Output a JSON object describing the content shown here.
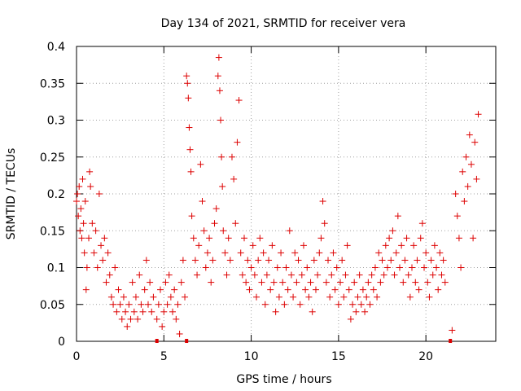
{
  "chart_data": {
    "type": "scatter",
    "title": "Day 134 of 2021, SRMTID for receiver vera",
    "xlabel": "GPS time / hours",
    "ylabel": "SRMTID / TECUs",
    "xlim": [
      0,
      24
    ],
    "ylim": [
      0,
      0.4
    ],
    "xticks": [
      0,
      5,
      10,
      15,
      20
    ],
    "xtick_labels": [
      "0",
      "5",
      "10",
      "15",
      "20"
    ],
    "yticks": [
      0,
      0.05,
      0.1,
      0.15,
      0.2,
      0.25,
      0.3,
      0.35,
      0.4
    ],
    "ytick_labels": [
      "0",
      "0.05",
      "0.1",
      "0.15",
      "0.2",
      "0.25",
      "0.3",
      "0.35",
      "0.4"
    ],
    "grid": true,
    "marker": "+",
    "color": "#dd0000",
    "series": [
      {
        "name": "SRMTID",
        "points": [
          [
            0.0,
            0.19
          ],
          [
            0.05,
            0.2
          ],
          [
            0.1,
            0.17
          ],
          [
            0.15,
            0.21
          ],
          [
            0.2,
            0.15
          ],
          [
            0.25,
            0.18
          ],
          [
            0.3,
            0.14
          ],
          [
            0.35,
            0.22
          ],
          [
            0.4,
            0.16
          ],
          [
            0.45,
            0.12
          ],
          [
            0.5,
            0.19
          ],
          [
            0.55,
            0.07
          ],
          [
            0.6,
            0.1
          ],
          [
            0.7,
            0.14
          ],
          [
            0.75,
            0.23
          ],
          [
            0.8,
            0.21
          ],
          [
            0.9,
            0.16
          ],
          [
            1.0,
            0.12
          ],
          [
            1.1,
            0.15
          ],
          [
            1.2,
            0.1
          ],
          [
            1.3,
            0.2
          ],
          [
            1.4,
            0.13
          ],
          [
            1.5,
            0.11
          ],
          [
            1.6,
            0.14
          ],
          [
            1.7,
            0.08
          ],
          [
            1.8,
            0.12
          ],
          [
            1.9,
            0.09
          ],
          [
            2.0,
            0.06
          ],
          [
            2.1,
            0.05
          ],
          [
            2.2,
            0.1
          ],
          [
            2.3,
            0.04
          ],
          [
            2.4,
            0.07
          ],
          [
            2.5,
            0.05
          ],
          [
            2.6,
            0.03
          ],
          [
            2.7,
            0.06
          ],
          [
            2.8,
            0.04
          ],
          [
            2.9,
            0.02
          ],
          [
            3.0,
            0.05
          ],
          [
            3.1,
            0.03
          ],
          [
            3.2,
            0.08
          ],
          [
            3.3,
            0.04
          ],
          [
            3.4,
            0.06
          ],
          [
            3.5,
            0.03
          ],
          [
            3.6,
            0.09
          ],
          [
            3.7,
            0.05
          ],
          [
            3.8,
            0.04
          ],
          [
            3.9,
            0.07
          ],
          [
            4.0,
            0.11
          ],
          [
            4.1,
            0.05
          ],
          [
            4.2,
            0.08
          ],
          [
            4.3,
            0.04
          ],
          [
            4.4,
            0.06
          ],
          [
            4.6,
            0.03
          ],
          [
            4.7,
            0.05
          ],
          [
            4.8,
            0.07
          ],
          [
            4.9,
            0.02
          ],
          [
            5.0,
            0.04
          ],
          [
            5.1,
            0.08
          ],
          [
            5.2,
            0.05
          ],
          [
            5.3,
            0.09
          ],
          [
            5.4,
            0.06
          ],
          [
            5.5,
            0.04
          ],
          [
            5.6,
            0.07
          ],
          [
            5.7,
            0.03
          ],
          [
            5.8,
            0.05
          ],
          [
            5.9,
            0.01
          ],
          [
            6.0,
            0.08
          ],
          [
            6.1,
            0.11
          ],
          [
            6.2,
            0.06
          ],
          [
            6.3,
            0.36
          ],
          [
            6.35,
            0.35
          ],
          [
            6.4,
            0.33
          ],
          [
            6.45,
            0.29
          ],
          [
            6.5,
            0.26
          ],
          [
            6.55,
            0.23
          ],
          [
            6.6,
            0.17
          ],
          [
            6.7,
            0.14
          ],
          [
            6.8,
            0.11
          ],
          [
            6.9,
            0.09
          ],
          [
            7.0,
            0.13
          ],
          [
            7.1,
            0.24
          ],
          [
            7.2,
            0.19
          ],
          [
            7.3,
            0.15
          ],
          [
            7.4,
            0.1
          ],
          [
            7.5,
            0.12
          ],
          [
            7.6,
            0.14
          ],
          [
            7.7,
            0.08
          ],
          [
            7.8,
            0.11
          ],
          [
            7.9,
            0.16
          ],
          [
            8.0,
            0.18
          ],
          [
            8.1,
            0.36
          ],
          [
            8.15,
            0.385
          ],
          [
            8.2,
            0.34
          ],
          [
            8.25,
            0.3
          ],
          [
            8.3,
            0.25
          ],
          [
            8.35,
            0.21
          ],
          [
            8.4,
            0.15
          ],
          [
            8.5,
            0.12
          ],
          [
            8.6,
            0.09
          ],
          [
            8.7,
            0.14
          ],
          [
            8.8,
            0.11
          ],
          [
            8.9,
            0.25
          ],
          [
            9.0,
            0.22
          ],
          [
            9.1,
            0.16
          ],
          [
            9.2,
            0.27
          ],
          [
            9.3,
            0.327
          ],
          [
            9.4,
            0.12
          ],
          [
            9.5,
            0.09
          ],
          [
            9.6,
            0.14
          ],
          [
            9.7,
            0.08
          ],
          [
            9.8,
            0.11
          ],
          [
            9.9,
            0.07
          ],
          [
            10.0,
            0.1
          ],
          [
            10.1,
            0.13
          ],
          [
            10.2,
            0.09
          ],
          [
            10.3,
            0.06
          ],
          [
            10.4,
            0.11
          ],
          [
            10.5,
            0.14
          ],
          [
            10.6,
            0.08
          ],
          [
            10.7,
            0.12
          ],
          [
            10.8,
            0.05
          ],
          [
            10.9,
            0.09
          ],
          [
            11.0,
            0.11
          ],
          [
            11.1,
            0.07
          ],
          [
            11.2,
            0.13
          ],
          [
            11.3,
            0.08
          ],
          [
            11.4,
            0.04
          ],
          [
            11.5,
            0.1
          ],
          [
            11.6,
            0.06
          ],
          [
            11.7,
            0.12
          ],
          [
            11.8,
            0.08
          ],
          [
            11.9,
            0.05
          ],
          [
            12.0,
            0.1
          ],
          [
            12.1,
            0.07
          ],
          [
            12.2,
            0.15
          ],
          [
            12.3,
            0.09
          ],
          [
            12.4,
            0.06
          ],
          [
            12.5,
            0.12
          ],
          [
            12.6,
            0.08
          ],
          [
            12.7,
            0.11
          ],
          [
            12.8,
            0.05
          ],
          [
            12.9,
            0.09
          ],
          [
            13.0,
            0.13
          ],
          [
            13.1,
            0.07
          ],
          [
            13.2,
            0.1
          ],
          [
            13.3,
            0.06
          ],
          [
            13.4,
            0.08
          ],
          [
            13.5,
            0.04
          ],
          [
            13.6,
            0.11
          ],
          [
            13.7,
            0.07
          ],
          [
            13.8,
            0.09
          ],
          [
            13.9,
            0.12
          ],
          [
            14.0,
            0.14
          ],
          [
            14.1,
            0.19
          ],
          [
            14.2,
            0.16
          ],
          [
            14.3,
            0.08
          ],
          [
            14.4,
            0.11
          ],
          [
            14.5,
            0.06
          ],
          [
            14.6,
            0.09
          ],
          [
            14.7,
            0.12
          ],
          [
            14.8,
            0.07
          ],
          [
            14.9,
            0.1
          ],
          [
            15.0,
            0.05
          ],
          [
            15.1,
            0.08
          ],
          [
            15.2,
            0.11
          ],
          [
            15.3,
            0.06
          ],
          [
            15.4,
            0.09
          ],
          [
            15.5,
            0.13
          ],
          [
            15.6,
            0.07
          ],
          [
            15.7,
            0.03
          ],
          [
            15.8,
            0.05
          ],
          [
            15.9,
            0.08
          ],
          [
            16.0,
            0.04
          ],
          [
            16.1,
            0.06
          ],
          [
            16.2,
            0.09
          ],
          [
            16.3,
            0.05
          ],
          [
            16.4,
            0.07
          ],
          [
            16.5,
            0.04
          ],
          [
            16.6,
            0.06
          ],
          [
            16.7,
            0.08
          ],
          [
            16.8,
            0.05
          ],
          [
            16.9,
            0.09
          ],
          [
            17.0,
            0.07
          ],
          [
            17.1,
            0.1
          ],
          [
            17.2,
            0.06
          ],
          [
            17.3,
            0.12
          ],
          [
            17.4,
            0.08
          ],
          [
            17.5,
            0.11
          ],
          [
            17.6,
            0.09
          ],
          [
            17.7,
            0.13
          ],
          [
            17.8,
            0.1
          ],
          [
            17.9,
            0.14
          ],
          [
            18.0,
            0.11
          ],
          [
            18.1,
            0.15
          ],
          [
            18.2,
            0.09
          ],
          [
            18.3,
            0.12
          ],
          [
            18.4,
            0.17
          ],
          [
            18.5,
            0.1
          ],
          [
            18.6,
            0.13
          ],
          [
            18.7,
            0.08
          ],
          [
            18.8,
            0.11
          ],
          [
            18.9,
            0.14
          ],
          [
            19.0,
            0.09
          ],
          [
            19.1,
            0.06
          ],
          [
            19.2,
            0.1
          ],
          [
            19.3,
            0.13
          ],
          [
            19.4,
            0.08
          ],
          [
            19.5,
            0.11
          ],
          [
            19.6,
            0.07
          ],
          [
            19.7,
            0.14
          ],
          [
            19.8,
            0.16
          ],
          [
            19.9,
            0.1
          ],
          [
            20.0,
            0.12
          ],
          [
            20.1,
            0.08
          ],
          [
            20.2,
            0.06
          ],
          [
            20.3,
            0.11
          ],
          [
            20.4,
            0.09
          ],
          [
            20.5,
            0.13
          ],
          [
            20.6,
            0.1
          ],
          [
            20.7,
            0.07
          ],
          [
            20.8,
            0.12
          ],
          [
            20.9,
            0.09
          ],
          [
            21.0,
            0.11
          ],
          [
            21.1,
            0.08
          ],
          [
            21.5,
            0.015
          ],
          [
            21.7,
            0.2
          ],
          [
            21.8,
            0.17
          ],
          [
            21.9,
            0.14
          ],
          [
            22.0,
            0.1
          ],
          [
            22.1,
            0.23
          ],
          [
            22.2,
            0.19
          ],
          [
            22.3,
            0.25
          ],
          [
            22.4,
            0.21
          ],
          [
            22.5,
            0.28
          ],
          [
            22.6,
            0.24
          ],
          [
            22.7,
            0.14
          ],
          [
            22.8,
            0.27
          ],
          [
            22.9,
            0.22
          ],
          [
            23.0,
            0.308
          ]
        ]
      },
      {
        "name": "markers",
        "points": [
          [
            4.6,
            0.0
          ],
          [
            6.3,
            0.0
          ],
          [
            21.4,
            0.0
          ]
        ]
      }
    ]
  }
}
